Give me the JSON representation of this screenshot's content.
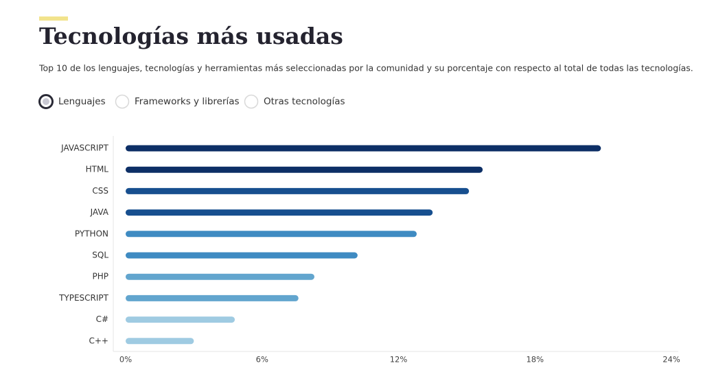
{
  "chart_data": {
    "type": "hbar",
    "title": "Tecnologías más usadas",
    "subtitle": "Top 10 de los lenguajes, tecnologías y herramientas más seleccionadas por la comunidad y su porcentaje con respecto al total de todas las tecnologías.",
    "options": [
      "Lenguajes",
      "Frameworks y librerías",
      "Otras tecnologías"
    ],
    "selected_option": 0,
    "categories": [
      "JAVASCRIPT",
      "HTML",
      "CSS",
      "JAVA",
      "PYTHON",
      "SQL",
      "PHP",
      "TYPESCRIPT",
      "C#",
      "C++"
    ],
    "values": [
      20.9,
      15.7,
      15.1,
      13.5,
      12.8,
      10.2,
      8.3,
      7.6,
      4.8,
      3.0
    ],
    "colors": [
      "#0d2f66",
      "#0d2f66",
      "#174f8f",
      "#174f8f",
      "#3f8bc2",
      "#3f8bc2",
      "#62a5ce",
      "#62a5ce",
      "#9fcbe2",
      "#9fcbe2"
    ],
    "xlim": [
      0,
      24
    ],
    "xticks": [
      {
        "value": 0,
        "label": "0%"
      },
      {
        "value": 6,
        "label": "6%"
      },
      {
        "value": 12,
        "label": "12%"
      },
      {
        "value": 18,
        "label": "18%"
      },
      {
        "value": 24,
        "label": "24%"
      }
    ]
  }
}
